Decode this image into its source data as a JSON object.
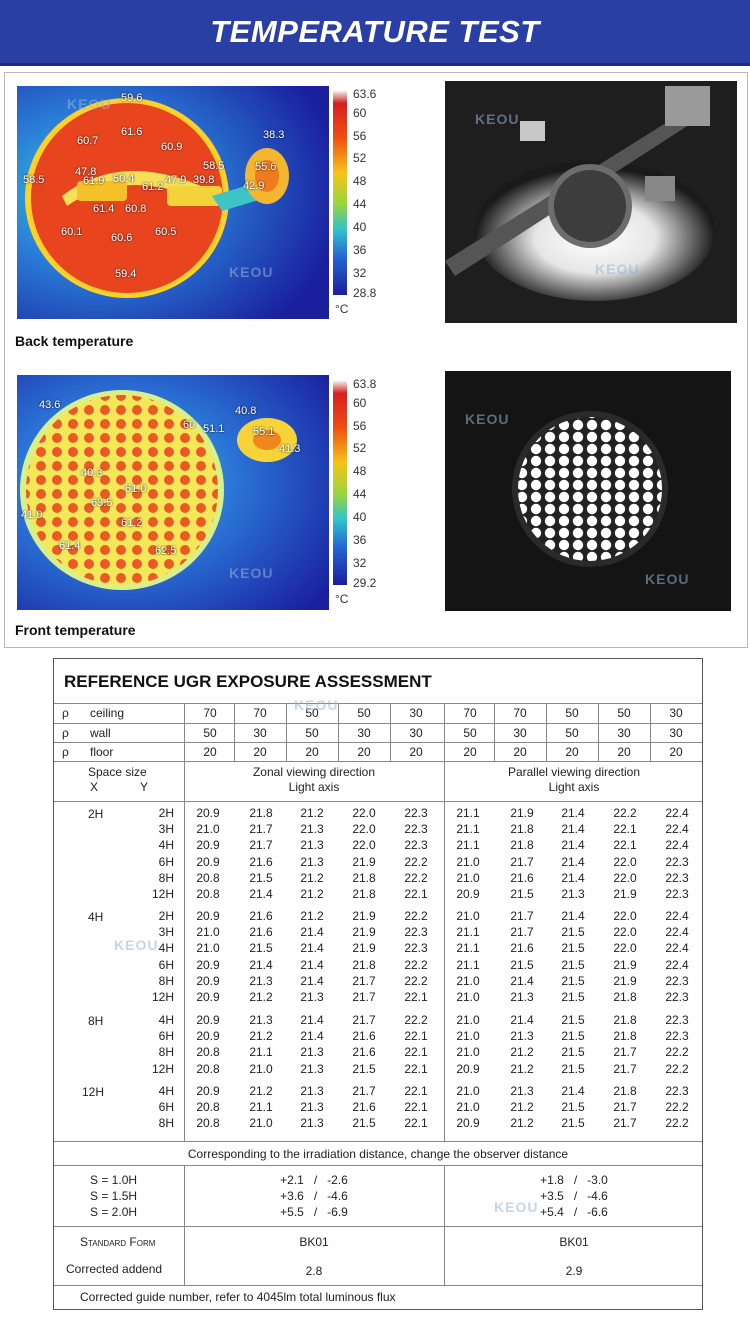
{
  "banner": {
    "title": "TEMPERATURE TEST"
  },
  "back": {
    "caption": "Back temperature",
    "scale": [
      "63.6",
      "60",
      "56",
      "52",
      "48",
      "44",
      "40",
      "36",
      "32",
      "28.8"
    ],
    "unit": "°C",
    "labels": [
      "59.6",
      "61.6",
      "60.7",
      "60.9",
      "38.3",
      "58.5",
      "55.6",
      "47.8",
      "61.9",
      "50.4",
      "61.2",
      "47.9",
      "39.8",
      "58.5",
      "42.9",
      "61.4",
      "60.8",
      "60.1",
      "60.6",
      "60.5",
      "59.4"
    ]
  },
  "front": {
    "caption": "Front temperature",
    "scale": [
      "63.8",
      "60",
      "56",
      "52",
      "48",
      "44",
      "40",
      "36",
      "32",
      "29.2"
    ],
    "unit": "°C",
    "labels": [
      "43.6",
      "40.8",
      "60",
      "51.1",
      "55.1",
      "41.3",
      "40.3",
      "61.0",
      "63.5",
      "61.2",
      "41.0",
      "61.4",
      "62.5"
    ]
  },
  "watermark": "KEOU",
  "ugr": {
    "title": "REFERENCE UGR EXPOSURE ASSESSMENT",
    "rho": "ρ",
    "reflect_rows": [
      {
        "label": "ceiling",
        "values": [
          "70",
          "70",
          "50",
          "50",
          "30",
          "70",
          "70",
          "50",
          "50",
          "30"
        ]
      },
      {
        "label": "wall",
        "values": [
          "50",
          "30",
          "50",
          "30",
          "30",
          "50",
          "30",
          "50",
          "30",
          "30"
        ]
      },
      {
        "label": "floor",
        "values": [
          "20",
          "20",
          "20",
          "20",
          "20",
          "20",
          "20",
          "20",
          "20",
          "20"
        ]
      }
    ],
    "space_size": "Space size",
    "x_label": "X",
    "y_label": "Y",
    "zonal_title": "Zonal viewing direction",
    "zonal_sub": "Light axis",
    "parallel_title": "Parallel viewing direction",
    "parallel_sub": "Light axis",
    "groups": [
      {
        "x": "2H",
        "rows": [
          {
            "y": "2H",
            "v": [
              "20.9",
              "21.8",
              "21.2",
              "22.0",
              "22.3",
              "21.1",
              "21.9",
              "21.4",
              "22.2",
              "22.4"
            ]
          },
          {
            "y": "3H",
            "v": [
              "21.0",
              "21.7",
              "21.3",
              "22.0",
              "22.3",
              "21.1",
              "21.8",
              "21.4",
              "22.1",
              "22.4"
            ]
          },
          {
            "y": "4H",
            "v": [
              "20.9",
              "21.7",
              "21.3",
              "22.0",
              "22.3",
              "21.1",
              "21.8",
              "21.4",
              "22.1",
              "22.4"
            ]
          },
          {
            "y": "6H",
            "v": [
              "20.9",
              "21.6",
              "21.3",
              "21.9",
              "22.2",
              "21.0",
              "21.7",
              "21.4",
              "22.0",
              "22.3"
            ]
          },
          {
            "y": "8H",
            "v": [
              "20.8",
              "21.5",
              "21.2",
              "21.8",
              "22.2",
              "21.0",
              "21.6",
              "21.4",
              "22.0",
              "22.3"
            ]
          },
          {
            "y": "12H",
            "v": [
              "20.8",
              "21.4",
              "21.2",
              "21.8",
              "22.1",
              "20.9",
              "21.5",
              "21.3",
              "21.9",
              "22.3"
            ]
          }
        ]
      },
      {
        "x": "4H",
        "rows": [
          {
            "y": "2H",
            "v": [
              "20.9",
              "21.6",
              "21.2",
              "21.9",
              "22.2",
              "21.0",
              "21.7",
              "21.4",
              "22.0",
              "22.4"
            ]
          },
          {
            "y": "3H",
            "v": [
              "21.0",
              "21.6",
              "21.4",
              "21.9",
              "22.3",
              "21.1",
              "21.7",
              "21.5",
              "22.0",
              "22.4"
            ]
          },
          {
            "y": "4H",
            "v": [
              "21.0",
              "21.5",
              "21.4",
              "21.9",
              "22.3",
              "21.1",
              "21.6",
              "21.5",
              "22.0",
              "22.4"
            ]
          },
          {
            "y": "6H",
            "v": [
              "20.9",
              "21.4",
              "21.4",
              "21.8",
              "22.2",
              "21.1",
              "21.5",
              "21.5",
              "21.9",
              "22.4"
            ]
          },
          {
            "y": "8H",
            "v": [
              "20.9",
              "21.3",
              "21.4",
              "21.7",
              "22.2",
              "21.0",
              "21.4",
              "21.5",
              "21.9",
              "22.3"
            ]
          },
          {
            "y": "12H",
            "v": [
              "20.9",
              "21.2",
              "21.3",
              "21.7",
              "22.1",
              "21.0",
              "21.3",
              "21.5",
              "21.8",
              "22.3"
            ]
          }
        ]
      },
      {
        "x": "8H",
        "rows": [
          {
            "y": "4H",
            "v": [
              "20.9",
              "21.3",
              "21.4",
              "21.7",
              "22.2",
              "21.0",
              "21.4",
              "21.5",
              "21.8",
              "22.3"
            ]
          },
          {
            "y": "6H",
            "v": [
              "20.9",
              "21.2",
              "21.4",
              "21.6",
              "22.1",
              "21.0",
              "21.3",
              "21.5",
              "21.8",
              "22.3"
            ]
          },
          {
            "y": "8H",
            "v": [
              "20.8",
              "21.1",
              "21.3",
              "21.6",
              "22.1",
              "21.0",
              "21.2",
              "21.5",
              "21.7",
              "22.2"
            ]
          },
          {
            "y": "12H",
            "v": [
              "20.8",
              "21.0",
              "21.3",
              "21.5",
              "22.1",
              "20.9",
              "21.2",
              "21.5",
              "21.7",
              "22.2"
            ]
          }
        ]
      },
      {
        "x": "12H",
        "rows": [
          {
            "y": "4H",
            "v": [
              "20.9",
              "21.2",
              "21.3",
              "21.7",
              "22.1",
              "21.0",
              "21.3",
              "21.4",
              "21.8",
              "22.3"
            ]
          },
          {
            "y": "6H",
            "v": [
              "20.8",
              "21.1",
              "21.3",
              "21.6",
              "22.1",
              "21.0",
              "21.2",
              "21.5",
              "21.7",
              "22.2"
            ]
          },
          {
            "y": "8H",
            "v": [
              "20.8",
              "21.0",
              "21.3",
              "21.5",
              "22.1",
              "20.9",
              "21.2",
              "21.5",
              "21.7",
              "22.2"
            ]
          }
        ]
      }
    ],
    "irradiation_note": "Corresponding to the irradiation distance, change the observer distance",
    "s_rows": [
      {
        "label": "S = 1.0H",
        "zonal": "+2.1   /   -2.6",
        "parallel": "+1.8   /   -3.0"
      },
      {
        "label": "S = 1.5H",
        "zonal": "+3.6   /   -4.6",
        "parallel": "+3.5   /   -4.6"
      },
      {
        "label": "S = 2.0H",
        "zonal": "+5.5   /   -6.9",
        "parallel": "+5.4   /   -6.6"
      }
    ],
    "standard_form_label": "Standard Form",
    "standard_form_zonal": "BK01",
    "standard_form_parallel": "BK01",
    "corrected_addend_label": "Corrected addend",
    "corrected_addend_zonal": "2.8",
    "corrected_addend_parallel": "2.9",
    "footer": "Corrected guide number, refer to 4045lm total luminous flux"
  }
}
